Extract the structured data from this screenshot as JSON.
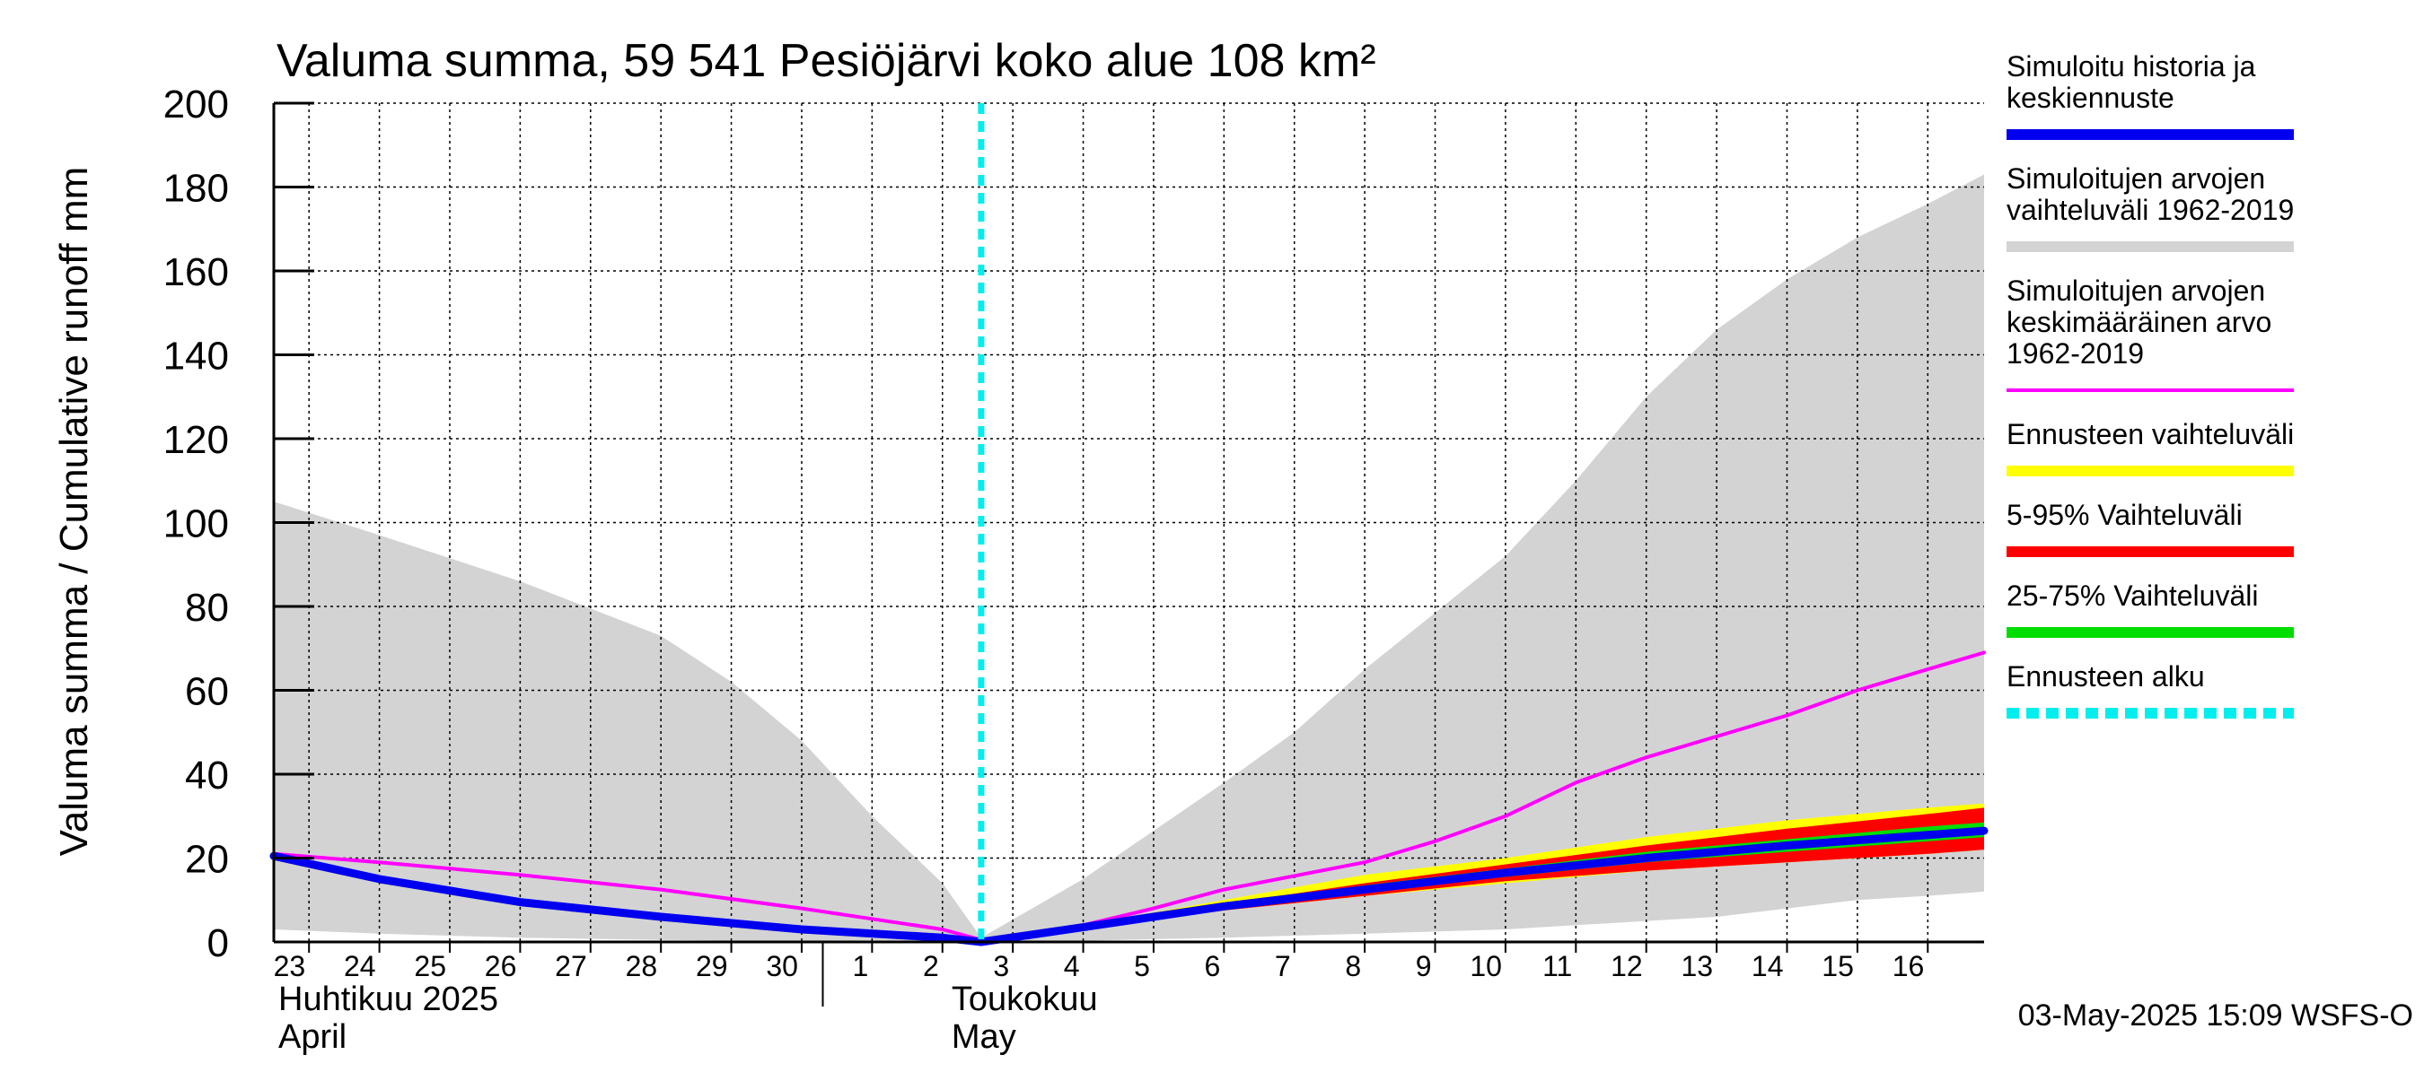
{
  "chart_data": {
    "type": "area",
    "title": "Valuma summa, 59 541 Pesiöjärvi koko alue 108 km²",
    "ylabel": "Valuma summa / Cumulative runoff    mm",
    "ylim": [
      0,
      200
    ],
    "yticks": [
      0,
      20,
      40,
      60,
      80,
      100,
      120,
      140,
      160,
      180,
      200
    ],
    "x_start_day": 22.5,
    "x_end_day": 46.8,
    "forecast_start_day": 32.55,
    "x_tick_labels": [
      {
        "day": 23,
        "label": "23"
      },
      {
        "day": 24,
        "label": "24"
      },
      {
        "day": 25,
        "label": "25"
      },
      {
        "day": 26,
        "label": "26"
      },
      {
        "day": 27,
        "label": "27"
      },
      {
        "day": 28,
        "label": "28"
      },
      {
        "day": 29,
        "label": "29"
      },
      {
        "day": 30,
        "label": "30"
      },
      {
        "day": 31,
        "label": "1"
      },
      {
        "day": 32,
        "label": "2"
      },
      {
        "day": 33,
        "label": "3"
      },
      {
        "day": 34,
        "label": "4"
      },
      {
        "day": 35,
        "label": "5"
      },
      {
        "day": 36,
        "label": "6"
      },
      {
        "day": 37,
        "label": "7"
      },
      {
        "day": 38,
        "label": "8"
      },
      {
        "day": 39,
        "label": "9"
      },
      {
        "day": 40,
        "label": "10"
      },
      {
        "day": 41,
        "label": "11"
      },
      {
        "day": 42,
        "label": "12"
      },
      {
        "day": 43,
        "label": "13"
      },
      {
        "day": 44,
        "label": "14"
      },
      {
        "day": 45,
        "label": "15"
      },
      {
        "day": 46,
        "label": "16"
      }
    ],
    "month_labels": [
      {
        "day": 22.5,
        "fi": "Huhtikuu  2025",
        "en": "April"
      },
      {
        "day": 31.9,
        "fi": "Toukokuu",
        "en": "May"
      }
    ],
    "month_divider_day": 30.3,
    "series": [
      {
        "name": "Simuloitujen arvojen vaihteluväli 1962-2019",
        "kind": "band",
        "color": "#d3d3d3",
        "x": [
          22.5,
          24,
          26,
          28,
          29,
          30,
          31,
          32,
          32.55,
          34,
          36,
          37,
          38,
          40,
          41,
          42,
          43,
          44,
          45,
          46,
          46.8
        ],
        "upper": [
          105,
          97,
          86,
          73,
          62,
          48,
          30,
          14,
          1,
          15,
          38,
          50,
          65,
          92,
          110,
          130,
          146,
          158,
          168,
          176,
          183
        ],
        "lower": [
          3,
          2,
          1,
          0.5,
          0.3,
          0.2,
          0.1,
          0,
          0,
          0.3,
          1,
          1.5,
          2,
          3,
          4,
          5,
          6,
          8,
          10,
          11,
          12
        ]
      },
      {
        "name": "Ennusteen vaihteluväli",
        "kind": "band",
        "color": "#ffff00",
        "x": [
          32.55,
          34,
          36,
          38,
          40,
          42,
          44,
          46,
          46.8
        ],
        "upper": [
          0,
          4,
          10,
          16,
          20,
          25,
          29,
          32,
          33
        ],
        "lower": [
          0,
          3,
          7.5,
          11,
          14,
          17,
          19,
          21,
          22
        ]
      },
      {
        "name": "5-95% Vaihteluväli",
        "kind": "band",
        "color": "#ff0000",
        "x": [
          32.55,
          34,
          36,
          38,
          40,
          42,
          44,
          46,
          46.8
        ],
        "upper": [
          0,
          3.8,
          9,
          14,
          18.5,
          23,
          27,
          30.5,
          32
        ],
        "lower": [
          0,
          3,
          7.5,
          11,
          14.5,
          17,
          19,
          21,
          22
        ]
      },
      {
        "name": "25-75% Vaihteluväli",
        "kind": "band",
        "color": "#00dd00",
        "x": [
          32.55,
          34,
          36,
          38,
          40,
          42,
          44,
          46,
          46.8
        ],
        "upper": [
          0,
          3.6,
          8.8,
          13.5,
          17.5,
          21.5,
          24.5,
          27.5,
          28.5
        ],
        "lower": [
          0,
          3.2,
          8,
          12,
          15.5,
          19,
          21.5,
          24,
          25
        ]
      },
      {
        "name": "Simuloitujen arvojen keskimääräinen arvo 1962-2019",
        "kind": "line",
        "color": "#ff00ff",
        "width": 4,
        "x": [
          22.5,
          24,
          26,
          28,
          30,
          31,
          32,
          32.55,
          34,
          35,
          36,
          38,
          39,
          40,
          41,
          42,
          43,
          44,
          45,
          46,
          46.8
        ],
        "y": [
          21,
          19,
          16,
          12.5,
          8,
          5.5,
          3,
          0.5,
          4,
          8,
          12.5,
          19,
          24,
          30,
          38,
          44,
          49,
          54,
          60,
          65,
          69
        ]
      },
      {
        "name": "Simuloitu historia ja keskiennuste",
        "kind": "line",
        "color": "#0000ee",
        "width": 9,
        "x": [
          22.5,
          24,
          26,
          28,
          30,
          32,
          32.55,
          34,
          36,
          38,
          40,
          42,
          44,
          46,
          46.8
        ],
        "y": [
          20.5,
          15,
          9.5,
          6,
          3,
          1,
          0,
          3.5,
          8.5,
          12.5,
          16.5,
          20,
          23,
          25.5,
          26.5
        ]
      }
    ],
    "legend": {
      "placement": "right",
      "entries": [
        {
          "lines": [
            "Simuloitu historia ja",
            "keskiennuste"
          ],
          "color": "#0000ee",
          "style": "solid-thick"
        },
        {
          "lines": [
            "Simuloitujen arvojen",
            "vaihteluväli 1962-2019"
          ],
          "color": "#d3d3d3",
          "style": "solid-thick"
        },
        {
          "lines": [
            "Simuloitujen arvojen",
            "keskimääräinen arvo",
            "   1962-2019"
          ],
          "color": "#ff00ff",
          "style": "solid-thin"
        },
        {
          "lines": [
            "Ennusteen vaihteluväli"
          ],
          "color": "#ffff00",
          "style": "solid-thick"
        },
        {
          "lines": [
            "5-95% Vaihteluväli"
          ],
          "color": "#ff0000",
          "style": "solid-thick"
        },
        {
          "lines": [
            "25-75% Vaihteluväli"
          ],
          "color": "#00dd00",
          "style": "solid-thick"
        },
        {
          "lines": [
            "Ennusteen alku"
          ],
          "color": "#00eeee",
          "style": "dashed-thick"
        }
      ]
    },
    "footer": "03-May-2025 15:09 WSFS-O"
  }
}
